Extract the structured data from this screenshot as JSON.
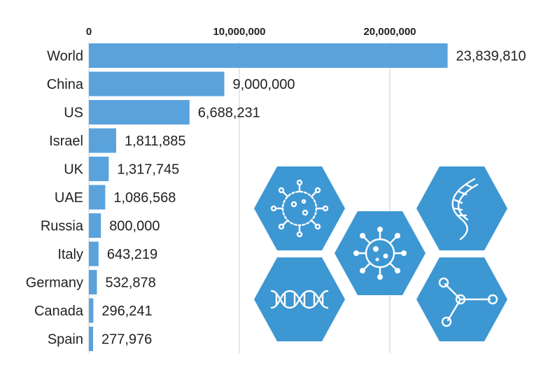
{
  "chart_data": {
    "type": "bar",
    "orientation": "horizontal",
    "categories": [
      "World",
      "China",
      "US",
      "Israel",
      "UK",
      "UAE",
      "Russia",
      "Italy",
      "Germany",
      "Canada",
      "Spain"
    ],
    "values": [
      23839810,
      9000000,
      6688231,
      1811885,
      1317745,
      1086568,
      800000,
      643219,
      532878,
      296241,
      277976
    ],
    "value_labels": [
      "23,839,810",
      "9,000,000",
      "6,688,231",
      "1,811,885",
      "1,317,745",
      "1,086,568",
      "800,000",
      "643,219",
      "532,878",
      "296,241",
      "277,976"
    ],
    "xticks": [
      0,
      10000000,
      20000000
    ],
    "xtick_labels": [
      "0",
      "10,000,000",
      "20,000,000"
    ],
    "xlim": [
      0,
      24000000
    ],
    "grid": true,
    "title": "",
    "xlabel": "",
    "ylabel": "",
    "bar_color": "#5aa2dc"
  },
  "decoration": {
    "hex_color": "#3d97d3",
    "icons": [
      "virus-cluster-icon",
      "dna-strand-icon",
      "virus-icon",
      "dna-helix-icon",
      "molecule-icon"
    ]
  }
}
